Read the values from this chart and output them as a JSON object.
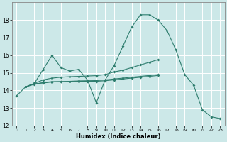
{
  "xlabel": "Humidex (Indice chaleur)",
  "bg_color": "#cce8e8",
  "grid_color": "#ffffff",
  "line_color": "#2e7d6e",
  "xlim": [
    -0.5,
    23.5
  ],
  "ylim": [
    12,
    19
  ],
  "xticks": [
    0,
    1,
    2,
    3,
    4,
    5,
    6,
    7,
    8,
    9,
    10,
    11,
    12,
    13,
    14,
    15,
    16,
    17,
    18,
    19,
    20,
    21,
    22,
    23
  ],
  "yticks": [
    12,
    13,
    14,
    15,
    16,
    17,
    18
  ],
  "series": [
    {
      "x": [
        0,
        1,
        2,
        3,
        4,
        5,
        6,
        7,
        8,
        9,
        10,
        11,
        12,
        13,
        14,
        15,
        16,
        17,
        18,
        19,
        20,
        21,
        22,
        23
      ],
      "y": [
        13.7,
        14.2,
        14.4,
        15.2,
        16.0,
        15.3,
        15.1,
        15.2,
        14.6,
        13.3,
        14.6,
        15.4,
        16.5,
        17.6,
        18.3,
        18.3,
        18.0,
        17.4,
        16.3,
        14.9,
        14.3,
        12.9,
        12.5,
        12.4
      ]
    },
    {
      "x": [
        1,
        2,
        3,
        4,
        5,
        6,
        7,
        8,
        9,
        10,
        11,
        12,
        13,
        14,
        15,
        16
      ],
      "y": [
        14.2,
        14.4,
        14.6,
        14.7,
        14.75,
        14.78,
        14.8,
        14.82,
        14.84,
        14.9,
        15.05,
        15.15,
        15.3,
        15.45,
        15.6,
        15.75
      ]
    },
    {
      "x": [
        1,
        2,
        3,
        4,
        5,
        6,
        7,
        8,
        9,
        10,
        11,
        12,
        13,
        14,
        15,
        16
      ],
      "y": [
        14.2,
        14.35,
        14.45,
        14.5,
        14.5,
        14.5,
        14.52,
        14.52,
        14.52,
        14.55,
        14.6,
        14.65,
        14.7,
        14.75,
        14.8,
        14.85
      ]
    },
    {
      "x": [
        1,
        2,
        3,
        4,
        5,
        6,
        7,
        8,
        9,
        10,
        11,
        12,
        13,
        14,
        15,
        16
      ],
      "y": [
        14.2,
        14.38,
        14.42,
        14.48,
        14.5,
        14.52,
        14.54,
        14.55,
        14.56,
        14.6,
        14.65,
        14.7,
        14.75,
        14.8,
        14.85,
        14.9
      ]
    }
  ]
}
